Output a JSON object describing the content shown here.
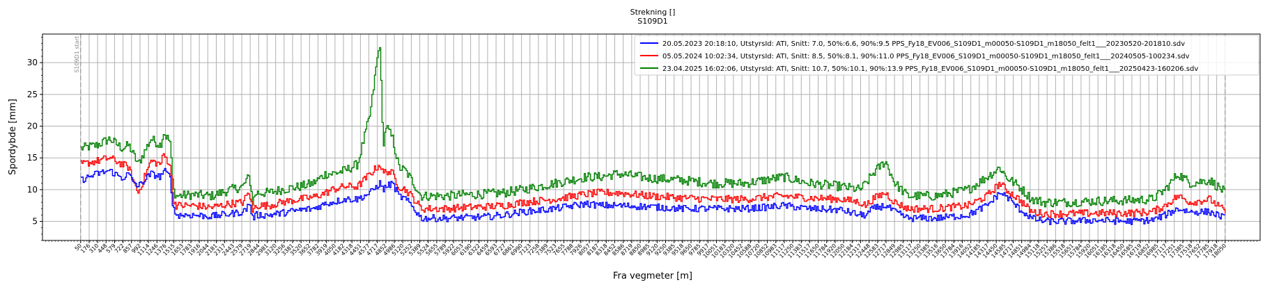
{
  "chart_data": {
    "type": "line",
    "title_line1": "Strekning []",
    "title_line2": "S109D1",
    "xlabel": "Fra vegmeter [m]",
    "ylabel": "Spordybde [mm]",
    "xlim": [
      -550,
      18600
    ],
    "ylim": [
      2,
      34.5
    ],
    "yticks": [
      5,
      10,
      15,
      20,
      25,
      30
    ],
    "grid": true,
    "legend_position": "top-right",
    "marker_label": "S109D1 start",
    "marker_positions": [
      50,
      18050
    ],
    "colors": {
      "series1": "#0000ff",
      "series2": "#ff0000",
      "series3": "#008000"
    },
    "x_ticks": [
      "50",
      "176",
      "310",
      "448",
      "579",
      "722",
      "857",
      "992",
      "1114",
      "1246",
      "1376",
      "1515",
      "1653",
      "1783",
      "1916",
      "2044",
      "2181",
      "2317",
      "2443",
      "2579",
      "2719",
      "2844",
      "2981",
      "3120",
      "3256",
      "3381",
      "3520",
      "3652",
      "3782",
      "3919",
      "4050",
      "4182",
      "4318",
      "4451",
      "4577",
      "4717",
      "4852",
      "4986",
      "5120",
      "5252",
      "5389",
      "5524",
      "5655",
      "5789",
      "5922",
      "6053",
      "6190",
      "6322",
      "6459",
      "6593",
      "6727",
      "6861",
      "6990",
      "7123",
      "7258",
      "7389",
      "7523",
      "7655",
      "7788",
      "7926",
      "8057",
      "8187",
      "8318",
      "8452",
      "8586",
      "8719",
      "8850",
      "8985",
      "9120",
      "9250",
      "9385",
      "9518",
      "9650",
      "9785",
      "9917",
      "10051",
      "10183",
      "10320",
      "10452",
      "10588",
      "10720",
      "10852",
      "10983",
      "11117",
      "11250",
      "11383",
      "11517",
      "11650",
      "11784",
      "11920",
      "12050",
      "12184",
      "12317",
      "12448",
      "12583",
      "12717",
      "12849",
      "12985",
      "13117",
      "13250",
      "13385",
      "13516",
      "13650",
      "13784",
      "13916",
      "14052",
      "14185",
      "14317",
      "14450",
      "14585",
      "14717",
      "14851",
      "14984",
      "15118",
      "15251",
      "15386",
      "15518",
      "15651",
      "15784",
      "15920",
      "16051",
      "16185",
      "16318",
      "16450",
      "16585",
      "16719",
      "16852",
      "16985",
      "17117",
      "17251",
      "17385",
      "17518",
      "17652",
      "17785",
      "17918",
      "18050"
    ],
    "series": [
      {
        "name": "20.05.2023 20:18:10, UtstyrsId: ATI, Snitt: 7.0, 50%:6.6, 90%:9.5 PPS_Fy18_EV006_S109D1_m00050-S109D1_m18050_felt1___20230520-201810.sdv",
        "color": "#0000ff"
      },
      {
        "name": "05.05.2024 10:02:34, UtstyrsId: ATI, Snitt: 8.5, 50%:8.1, 90%:11.0 PPS_Fy18_EV006_S109D1_m00050-S109D1_m18050_felt1___20240505-100234.sdv",
        "color": "#ff0000"
      },
      {
        "name": "23.04.2025 16:02:06, UtstyrsId: ATI, Snitt: 10.7, 50%:10.1, 90%:13.9 PPS_Fy18_EV006_S109D1_m00050-S109D1_m18050_felt1___20250423-160206.sdv",
        "color": "#008000"
      }
    ],
    "profile": {
      "x": [
        50,
        300,
        500,
        700,
        800,
        850,
        950,
        1150,
        1300,
        1350,
        1450,
        1500,
        1550,
        1800,
        2100,
        2400,
        2600,
        2650,
        2700,
        2750,
        2800,
        3000,
        3200,
        3500,
        3700,
        3900,
        4000,
        4200,
        4400,
        4600,
        4700,
        4750,
        4800,
        4850,
        4950,
        5050,
        5150,
        5250,
        5400,
        5600,
        5800,
        6100,
        6400,
        6700,
        7000,
        7500,
        8000,
        8200,
        8500,
        9000,
        9500,
        10000,
        10500,
        10800,
        11100,
        11500,
        12000,
        12300,
        12400,
        12500,
        12700,
        12850,
        12950,
        13050,
        13200,
        13500,
        14000,
        14300,
        14500,
        14600,
        14800,
        15000,
        15200,
        15500,
        16000,
        16500,
        16900,
        17100,
        17300,
        17500,
        17800,
        18050
      ],
      "y1": [
        11.5,
        12.5,
        13.0,
        11.8,
        12.5,
        11.5,
        10.5,
        12.5,
        12.0,
        13.0,
        12.0,
        7.0,
        6.0,
        6.0,
        5.8,
        6.2,
        6.5,
        7.0,
        8.0,
        5.5,
        6.0,
        6.0,
        6.3,
        6.8,
        7.0,
        7.8,
        8.0,
        8.5,
        8.5,
        9.5,
        10.5,
        11.0,
        10.0,
        10.5,
        11.0,
        9.0,
        8.5,
        7.5,
        5.5,
        5.5,
        5.5,
        5.6,
        5.7,
        6.0,
        6.5,
        7.0,
        7.8,
        7.5,
        7.5,
        7.3,
        7.0,
        7.0,
        7.0,
        7.2,
        7.5,
        7.0,
        6.8,
        6.0,
        6.0,
        7.0,
        7.5,
        6.5,
        6.0,
        5.5,
        5.5,
        5.5,
        6.0,
        7.5,
        9.5,
        9.0,
        7.0,
        5.5,
        5.0,
        5.0,
        5.2,
        5.0,
        5.2,
        6.0,
        7.0,
        6.5,
        6.5,
        5.5
      ],
      "y2": [
        14.0,
        14.5,
        15.0,
        14.0,
        13.5,
        12.0,
        9.5,
        14.5,
        14.0,
        15.5,
        14.0,
        8.5,
        7.5,
        7.5,
        7.2,
        7.8,
        8.0,
        9.0,
        9.5,
        6.5,
        7.5,
        7.5,
        8.0,
        8.5,
        8.8,
        9.5,
        10.0,
        10.5,
        10.5,
        12.5,
        13.5,
        14.0,
        12.5,
        13.0,
        12.5,
        10.5,
        10.0,
        9.0,
        7.0,
        7.0,
        7.0,
        7.2,
        7.3,
        7.5,
        8.0,
        8.5,
        9.3,
        9.5,
        9.5,
        9.0,
        8.7,
        8.5,
        8.5,
        8.8,
        9.0,
        8.7,
        8.5,
        8.0,
        7.5,
        8.5,
        9.5,
        8.0,
        7.5,
        7.0,
        7.0,
        7.0,
        7.5,
        9.0,
        11.0,
        10.0,
        8.5,
        6.5,
        6.2,
        6.2,
        6.3,
        6.3,
        6.5,
        7.5,
        9.0,
        8.0,
        8.5,
        6.5
      ],
      "y3": [
        16.5,
        17.0,
        18.0,
        16.5,
        17.0,
        16.0,
        14.0,
        18.0,
        17.0,
        19.0,
        17.5,
        10.0,
        9.0,
        9.2,
        9.0,
        10.0,
        10.5,
        11.5,
        12.0,
        8.0,
        9.5,
        9.5,
        10.0,
        10.5,
        11.0,
        12.5,
        12.5,
        13.0,
        14.0,
        22.0,
        30.0,
        33.0,
        17.0,
        20.0,
        18.0,
        13.5,
        13.0,
        11.5,
        9.0,
        9.0,
        9.0,
        9.2,
        9.3,
        9.5,
        10.0,
        11.0,
        12.0,
        12.0,
        12.5,
        11.8,
        11.5,
        11.0,
        11.0,
        11.5,
        12.0,
        11.0,
        10.5,
        10.0,
        11.0,
        12.5,
        14.5,
        11.0,
        10.0,
        9.0,
        9.0,
        9.0,
        10.0,
        12.0,
        13.5,
        12.0,
        10.5,
        8.5,
        8.0,
        8.0,
        8.2,
        8.3,
        8.5,
        10.0,
        12.5,
        11.0,
        11.5,
        9.5
      ]
    }
  }
}
